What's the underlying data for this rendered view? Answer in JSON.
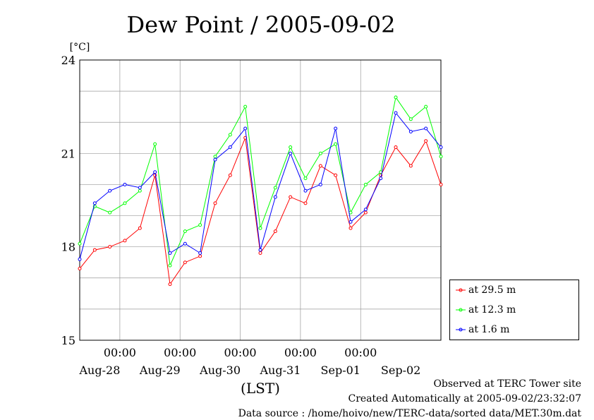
{
  "chart_data": {
    "type": "line",
    "title": "Dew Point / 2005-09-02",
    "ylabel": "[°C]",
    "xlabel": "(LST)",
    "ylim": [
      15,
      24
    ],
    "yticks": [
      "15",
      "18",
      "21",
      "24"
    ],
    "xlim_days": [
      0,
      6
    ],
    "x_time_labels": [
      "00:00",
      "00:00",
      "00:00",
      "00:00",
      "00:00"
    ],
    "x_date_labels": [
      "Aug-28",
      "Aug-29",
      "Aug-30",
      "Aug-31",
      "Sep-01",
      "Sep-02"
    ],
    "x_unit": "days since 2005-08-27 16:00",
    "grid": true,
    "legend_position": "right-bottom",
    "series": [
      {
        "name": "at 29.5 m",
        "color": "#ff0000",
        "x": [
          0.0,
          0.25,
          0.5,
          0.75,
          1.0,
          1.25,
          1.5,
          1.75,
          2.0,
          2.25,
          2.5,
          2.75,
          3.0,
          3.25,
          3.5,
          3.75,
          4.0,
          4.25,
          4.5,
          4.75,
          5.0,
          5.25,
          5.5,
          5.75,
          6.0
        ],
        "values": [
          17.3,
          17.9,
          18.0,
          18.2,
          18.6,
          20.3,
          16.8,
          17.5,
          17.7,
          19.4,
          20.3,
          21.5,
          17.8,
          18.5,
          19.6,
          19.4,
          20.6,
          20.3,
          18.6,
          19.1,
          20.3,
          21.2,
          20.6,
          21.4,
          20.0
        ]
      },
      {
        "name": "at 12.3 m",
        "color": "#00ff00",
        "x": [
          0.0,
          0.25,
          0.5,
          0.75,
          1.0,
          1.25,
          1.5,
          1.75,
          2.0,
          2.25,
          2.5,
          2.75,
          3.0,
          3.25,
          3.5,
          3.75,
          4.0,
          4.25,
          4.5,
          4.75,
          5.0,
          5.25,
          5.5,
          5.75,
          6.0
        ],
        "values": [
          18.1,
          19.3,
          19.1,
          19.4,
          19.8,
          21.3,
          17.4,
          18.5,
          18.7,
          20.9,
          21.6,
          22.5,
          18.6,
          19.9,
          21.2,
          20.2,
          21.0,
          21.3,
          19.1,
          20.0,
          20.4,
          22.8,
          22.1,
          22.5,
          20.9
        ]
      },
      {
        "name": "at 1.6 m",
        "color": "#0000ff",
        "x": [
          0.0,
          0.25,
          0.5,
          0.75,
          1.0,
          1.25,
          1.5,
          1.75,
          2.0,
          2.25,
          2.5,
          2.75,
          3.0,
          3.25,
          3.5,
          3.75,
          4.0,
          4.25,
          4.5,
          4.75,
          5.0,
          5.25,
          5.5,
          5.75,
          6.0
        ],
        "values": [
          17.6,
          19.4,
          19.8,
          20.0,
          19.9,
          20.4,
          17.8,
          18.1,
          17.8,
          20.8,
          21.2,
          21.8,
          17.9,
          19.6,
          21.0,
          19.8,
          20.0,
          21.8,
          18.8,
          19.2,
          20.2,
          22.3,
          21.7,
          21.8,
          21.2
        ]
      }
    ]
  },
  "footer": {
    "line1": "Observed at TERC Tower site",
    "line2": "Created Automatically at 2005-09-02/23:32:07",
    "line3": "Data source : /home/hoivo/new/TERC-data/sorted  data/MET.30m.dat"
  }
}
